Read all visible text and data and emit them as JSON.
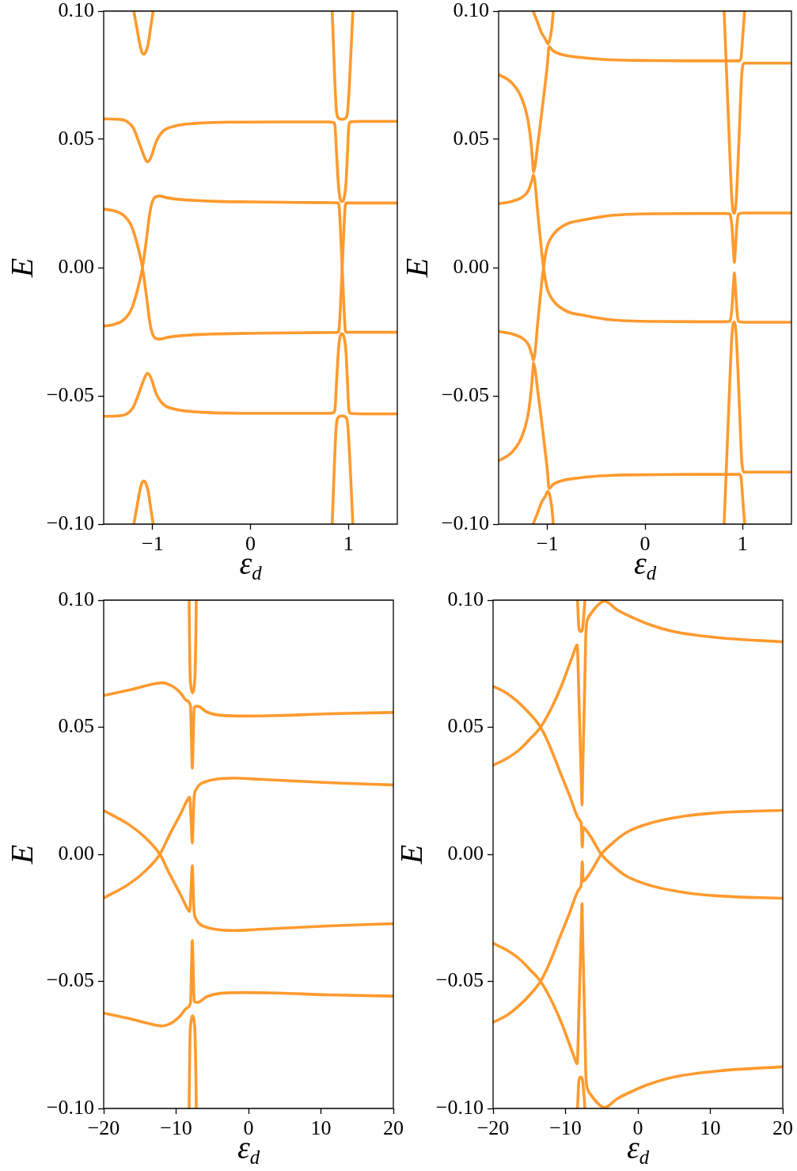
{
  "chart_data": [
    {
      "type": "line",
      "xlabel": "ε$_{d}$",
      "ylabel": "E",
      "xlim": [
        -1.5,
        1.5
      ],
      "xticks": [
        {
          "value": -1,
          "label": "−1"
        },
        0,
        1
      ],
      "ylim": [
        -0.1,
        0.1
      ],
      "yticks": [
        {
          "value": -0.1,
          "label": "−0.10"
        },
        {
          "value": -0.05,
          "label": "−0.05"
        },
        {
          "value": 0,
          "label": "0.00"
        },
        {
          "value": 0.05,
          "label": "0.05"
        },
        {
          "value": 0.1,
          "label": "0.10"
        }
      ],
      "series": [
        {
          "color": "#ff9a2e",
          "x": [
            -1.192,
            -1.162,
            -1.131,
            -1.11,
            -1.09,
            -1.07,
            -1.046,
            -1.02,
            -0.995
          ],
          "values": [
            0.1,
            0.0936,
            0.0871,
            0.084,
            0.0832,
            0.084,
            0.0871,
            0.0936,
            0.1
          ]
        },
        {
          "color": "#ff9a2e",
          "x": [
            0.835,
            0.859,
            0.876,
            0.893,
            0.935,
            0.978,
            0.995,
            1.015,
            1.046
          ],
          "values": [
            0.1,
            0.075,
            0.062,
            0.0585,
            0.0578,
            0.0585,
            0.062,
            0.075,
            0.1
          ]
        },
        {
          "color": "#ff9a2e",
          "x": [
            -1.5,
            -1.353,
            -1.267,
            -1.199,
            -1.131,
            -1.08,
            -1.053,
            -1.019,
            -0.961,
            -0.893,
            -0.773,
            -0.569,
            -0.228,
            0.283,
            0.794,
            0.845,
            0.862,
            0.88,
            0.898,
            0.915,
            0.935,
            0.955,
            0.975,
            0.99,
            1.005,
            1.02,
            1.135,
            1.5
          ],
          "values": [
            0.058,
            0.0578,
            0.0571,
            0.0545,
            0.048,
            0.0428,
            0.0412,
            0.0428,
            0.0493,
            0.0532,
            0.0552,
            0.0562,
            0.0567,
            0.0568,
            0.0568,
            0.0566,
            0.0555,
            0.044,
            0.0325,
            0.027,
            0.0258,
            0.027,
            0.0325,
            0.044,
            0.0555,
            0.0568,
            0.057,
            0.057
          ]
        },
        {
          "color": "#ff9a2e",
          "x": [
            -1.5,
            -1.4,
            -1.3,
            -1.22,
            -1.16,
            -1.104,
            -1.06,
            -1.03,
            -1.0,
            -0.97,
            -0.93,
            -0.85,
            -0.7,
            -0.4,
            0,
            0.5,
            0.85,
            0.895,
            0.905,
            0.937,
            0.968,
            0.978,
            1.1,
            1.5
          ],
          "values": [
            0.0228,
            0.0222,
            0.0205,
            0.0165,
            0.0095,
            0,
            -0.012,
            -0.021,
            -0.026,
            -0.0276,
            -0.0279,
            -0.0272,
            -0.0265,
            -0.0259,
            -0.0256,
            -0.0254,
            -0.0253,
            -0.0252,
            -0.024,
            0,
            0.024,
            0.0252,
            0.0252,
            0.0252
          ]
        },
        {
          "color": "#ff9a2e",
          "x": [
            -1.5,
            -1.4,
            -1.3,
            -1.22,
            -1.16,
            -1.104,
            -1.06,
            -1.03,
            -1.0,
            -0.97,
            -0.93,
            -0.85,
            -0.7,
            -0.4,
            0,
            0.5,
            0.85,
            0.895,
            0.905,
            0.937,
            0.968,
            0.978,
            1.1,
            1.5
          ],
          "values": [
            -0.0228,
            -0.0222,
            -0.0205,
            -0.0165,
            -0.0095,
            0,
            0.012,
            0.021,
            0.026,
            0.0276,
            0.0279,
            0.0272,
            0.0265,
            0.0259,
            0.0256,
            0.0254,
            0.0253,
            0.0252,
            0.024,
            0,
            -0.024,
            -0.0252,
            -0.0252,
            -0.0252
          ]
        },
        {
          "color": "#ff9a2e",
          "x": [
            -1.5,
            -1.353,
            -1.267,
            -1.199,
            -1.131,
            -1.08,
            -1.053,
            -1.019,
            -0.961,
            -0.893,
            -0.773,
            -0.569,
            -0.228,
            0.283,
            0.794,
            0.845,
            0.862,
            0.88,
            0.898,
            0.915,
            0.935,
            0.955,
            0.975,
            0.99,
            1.005,
            1.02,
            1.135,
            1.5
          ],
          "values": [
            -0.058,
            -0.0578,
            -0.0571,
            -0.0545,
            -0.048,
            -0.0428,
            -0.0412,
            -0.0428,
            -0.0493,
            -0.0532,
            -0.0552,
            -0.0562,
            -0.0567,
            -0.0568,
            -0.0568,
            -0.0566,
            -0.0555,
            -0.044,
            -0.0325,
            -0.027,
            -0.0258,
            -0.027,
            -0.0325,
            -0.044,
            -0.0555,
            -0.0568,
            -0.057,
            -0.057
          ]
        },
        {
          "color": "#ff9a2e",
          "x": [
            -1.192,
            -1.162,
            -1.131,
            -1.11,
            -1.09,
            -1.07,
            -1.046,
            -1.02,
            -0.995
          ],
          "values": [
            -0.1,
            -0.0936,
            -0.0871,
            -0.084,
            -0.0832,
            -0.084,
            -0.0871,
            -0.0936,
            -0.1
          ]
        },
        {
          "color": "#ff9a2e",
          "x": [
            0.835,
            0.859,
            0.876,
            0.893,
            0.935,
            0.978,
            0.995,
            1.015,
            1.046
          ],
          "values": [
            -0.1,
            -0.075,
            -0.062,
            -0.0585,
            -0.0578,
            -0.0585,
            -0.062,
            -0.075,
            -0.1
          ]
        }
      ]
    },
    {
      "type": "line",
      "xlabel": "ε$_{d}$",
      "ylabel": "E",
      "xlim": [
        -1.5,
        1.5
      ],
      "xticks": [
        {
          "value": -1,
          "label": "−1"
        },
        0,
        1
      ],
      "ylim": [
        -0.1,
        0.1
      ],
      "yticks": [
        {
          "value": -0.1,
          "label": "−0.10"
        },
        {
          "value": -0.05,
          "label": "−0.05"
        },
        {
          "value": 0,
          "label": "0.00"
        },
        {
          "value": 0.05,
          "label": "0.05"
        },
        {
          "value": 0.1,
          "label": "0.10"
        }
      ],
      "series": [
        {
          "color": "#ff9a2e",
          "x": [
            -1.146,
            -1.1,
            -1.06,
            -1.02,
            -0.995,
            -0.975,
            -0.955,
            -0.94
          ],
          "values": [
            0.1,
            0.0955,
            0.0915,
            0.089,
            0.0872,
            0.089,
            0.0935,
            0.1
          ]
        },
        {
          "color": "#ff9a2e",
          "x": [
            -1.5,
            -1.367,
            -1.265,
            -1.204,
            -1.17,
            -1.152,
            -1.143,
            -1.095,
            -1.044,
            -1.0,
            -0.983,
            -0.942,
            -0.847,
            -0.684,
            -0.357,
            0.1,
            0.469,
            0.965,
            0.982,
            0.995,
            1.02
          ],
          "values": [
            0.0753,
            0.0721,
            0.0662,
            0.0584,
            0.0493,
            0.0415,
            0.0373,
            0.0493,
            0.0649,
            0.0793,
            0.0861,
            0.0845,
            0.083,
            0.082,
            0.081,
            0.0807,
            0.0806,
            0.0806,
            0.0815,
            0.087,
            0.1
          ]
        },
        {
          "color": "#ff9a2e",
          "x": [
            0.81,
            0.831,
            0.87,
            0.889,
            0.902,
            0.912,
            0.922,
            0.935,
            0.955,
            0.975,
            0.99,
            1.0,
            1.015,
            1.5
          ],
          "values": [
            0.1,
            0.08,
            0.043,
            0.027,
            0.022,
            0.0212,
            0.022,
            0.027,
            0.043,
            0.062,
            0.075,
            0.0785,
            0.0797,
            0.0797
          ]
        },
        {
          "color": "#ff9a2e",
          "x": [
            -1.5,
            -1.367,
            -1.265,
            -1.197,
            -1.16,
            -1.143,
            -1.095,
            -1.061,
            -1.04,
            -1.02,
            -1.0,
            -0.975,
            -0.956,
            -0.92,
            -0.88,
            -0.792,
            -0.6,
            -0.357,
            0.129,
            0.81,
            0.87,
            0.89,
            0.905,
            0.915,
            0.925,
            0.94,
            0.955,
            1.014,
            1.5
          ],
          "values": [
            -0.0249,
            -0.0258,
            -0.0273,
            -0.0299,
            -0.0338,
            -0.0362,
            -0.0198,
            -0.0068,
            0,
            0.005,
            0.0085,
            0.0108,
            0.012,
            0.0138,
            0.0152,
            0.0172,
            0.0188,
            0.0203,
            0.021,
            0.0211,
            0.0209,
            0.016,
            0.007,
            0.002,
            0.007,
            0.016,
            0.0209,
            0.0213,
            0.0213
          ]
        },
        {
          "color": "#ff9a2e",
          "x": [
            -1.5,
            -1.367,
            -1.265,
            -1.197,
            -1.16,
            -1.143,
            -1.095,
            -1.061,
            -1.04,
            -1.02,
            -1.0,
            -0.975,
            -0.956,
            -0.92,
            -0.88,
            -0.792,
            -0.6,
            -0.357,
            0.129,
            0.81,
            0.87,
            0.89,
            0.905,
            0.915,
            0.925,
            0.94,
            0.955,
            1.014,
            1.5
          ],
          "values": [
            0.0249,
            0.0258,
            0.0273,
            0.0299,
            0.0338,
            0.0362,
            0.0198,
            0.0068,
            0,
            -0.005,
            -0.0085,
            -0.0108,
            -0.012,
            -0.0138,
            -0.0152,
            -0.0172,
            -0.0188,
            -0.0203,
            -0.021,
            -0.0211,
            -0.0209,
            -0.016,
            -0.007,
            -0.002,
            -0.007,
            -0.016,
            -0.0209,
            -0.0213,
            -0.0213
          ]
        },
        {
          "color": "#ff9a2e",
          "x": [
            -1.5,
            -1.367,
            -1.265,
            -1.204,
            -1.17,
            -1.152,
            -1.143,
            -1.095,
            -1.044,
            -1.0,
            -0.983,
            -0.942,
            -0.847,
            -0.684,
            -0.357,
            0.1,
            0.469,
            0.965,
            0.982,
            0.995,
            1.02
          ],
          "values": [
            -0.0753,
            -0.0721,
            -0.0662,
            -0.0584,
            -0.0493,
            -0.0415,
            -0.0373,
            -0.0493,
            -0.0649,
            -0.0793,
            -0.0861,
            -0.0845,
            -0.083,
            -0.082,
            -0.081,
            -0.0807,
            -0.0806,
            -0.0806,
            -0.0815,
            -0.087,
            -0.1
          ]
        },
        {
          "color": "#ff9a2e",
          "x": [
            0.81,
            0.831,
            0.87,
            0.889,
            0.902,
            0.912,
            0.922,
            0.935,
            0.955,
            0.975,
            0.99,
            1.0,
            1.015,
            1.5
          ],
          "values": [
            -0.1,
            -0.08,
            -0.043,
            -0.027,
            -0.022,
            -0.0212,
            -0.022,
            -0.027,
            -0.043,
            -0.062,
            -0.075,
            -0.0785,
            -0.0797,
            -0.0797
          ]
        },
        {
          "color": "#ff9a2e",
          "x": [
            -1.146,
            -1.1,
            -1.06,
            -1.02,
            -0.995,
            -0.975,
            -0.955,
            -0.94
          ],
          "values": [
            -0.1,
            -0.0955,
            -0.0915,
            -0.089,
            -0.0872,
            -0.089,
            -0.0935,
            -0.1
          ]
        }
      ]
    },
    {
      "type": "line",
      "xlabel": "ε$_{d}$",
      "ylabel": "E",
      "xlim": [
        -20,
        20
      ],
      "xticks": [
        {
          "value": -20,
          "label": "−20"
        },
        {
          "value": -10,
          "label": "−10"
        },
        0,
        10,
        20
      ],
      "ylim": [
        -0.1,
        0.1
      ],
      "yticks": [
        {
          "value": -0.1,
          "label": "−0.10"
        },
        {
          "value": -0.05,
          "label": "−0.05"
        },
        {
          "value": 0,
          "label": "0.00"
        },
        {
          "value": 0.05,
          "label": "0.05"
        },
        {
          "value": 0.1,
          "label": "0.10"
        }
      ],
      "series": [
        {
          "color": "#ff9a2e",
          "x": [
            -8.2,
            -8.15,
            -8.08,
            -7.95,
            -7.73,
            -7.5,
            -7.37,
            -7.28,
            -7.21
          ],
          "values": [
            0.1,
            0.085,
            0.072,
            0.066,
            0.0635,
            0.066,
            0.072,
            0.085,
            0.1
          ]
        },
        {
          "color": "#ff9a2e",
          "x": [
            -20,
            -16.69,
            -13.77,
            -11.95,
            -10.49,
            -9.4,
            -8.49,
            -8.01,
            -7.88,
            -7.76,
            -7.64,
            -7.51,
            -7.03,
            -5.76,
            -3.93,
            -0.3,
            4.08,
            10.96,
            20
          ],
          "values": [
            0.0625,
            0.0645,
            0.0666,
            0.0675,
            0.0661,
            0.0635,
            0.0604,
            0.0583,
            0.045,
            0.0339,
            0.045,
            0.0578,
            0.0583,
            0.056,
            0.0547,
            0.0544,
            0.0546,
            0.0553,
            0.0558
          ]
        },
        {
          "color": "#ff9a2e",
          "x": [
            -20,
            -16.56,
            -14.27,
            -12.24,
            -10.85,
            -9.4,
            -8.31,
            -8.12,
            -7.94,
            -7.76,
            -7.66,
            -7.55,
            -7.4,
            -7.21,
            -6.85,
            -6.0,
            -5.03,
            -2.11,
            1.53,
            10.96,
            20
          ],
          "values": [
            -0.0172,
            -0.0118,
            -0.0066,
            0,
            0.008,
            0.0158,
            0.022,
            0.0225,
            0.014,
            0.0044,
            0.012,
            0.021,
            0.0245,
            0.0256,
            0.0272,
            0.0285,
            0.0293,
            0.03,
            0.0295,
            0.0282,
            0.0273
          ]
        },
        {
          "color": "#ff9a2e",
          "x": [
            -20,
            -16.56,
            -14.27,
            -12.24,
            -10.85,
            -9.4,
            -8.31,
            -8.12,
            -7.94,
            -7.76,
            -7.66,
            -7.55,
            -7.4,
            -7.21,
            -6.85,
            -6.0,
            -5.03,
            -2.11,
            1.53,
            10.96,
            20
          ],
          "values": [
            0.0172,
            0.0118,
            0.0066,
            0,
            -0.008,
            -0.0158,
            -0.022,
            -0.0225,
            -0.014,
            -0.0044,
            -0.012,
            -0.021,
            -0.0245,
            -0.0256,
            -0.0272,
            -0.0285,
            -0.0293,
            -0.03,
            -0.0295,
            -0.0282,
            -0.0273
          ]
        },
        {
          "color": "#ff9a2e",
          "x": [
            -20,
            -16.69,
            -13.77,
            -11.95,
            -10.49,
            -9.4,
            -8.49,
            -8.01,
            -7.88,
            -7.76,
            -7.64,
            -7.51,
            -7.03,
            -5.76,
            -3.93,
            -0.3,
            4.08,
            10.96,
            20
          ],
          "values": [
            -0.0625,
            -0.0645,
            -0.0666,
            -0.0675,
            -0.0661,
            -0.0635,
            -0.0604,
            -0.0583,
            -0.045,
            -0.0339,
            -0.045,
            -0.0578,
            -0.0583,
            -0.056,
            -0.0547,
            -0.0544,
            -0.0546,
            -0.0553,
            -0.0558
          ]
        },
        {
          "color": "#ff9a2e",
          "x": [
            -8.2,
            -8.15,
            -8.08,
            -7.95,
            -7.73,
            -7.5,
            -7.37,
            -7.28,
            -7.21
          ],
          "values": [
            -0.1,
            -0.085,
            -0.072,
            -0.066,
            -0.0635,
            -0.066,
            -0.072,
            -0.085,
            -0.1
          ]
        }
      ]
    },
    {
      "type": "line",
      "xlabel": "ε$_{d}$",
      "ylabel": "E",
      "xlim": [
        -20,
        20
      ],
      "xticks": [
        {
          "value": -20,
          "label": "−20"
        },
        {
          "value": -10,
          "label": "−10"
        },
        0,
        10,
        20
      ],
      "ylim": [
        -0.1,
        0.1
      ],
      "yticks": [
        {
          "value": -0.1,
          "label": "−0.10"
        },
        {
          "value": -0.05,
          "label": "−0.05"
        },
        {
          "value": 0,
          "label": "0.00"
        },
        {
          "value": 0.05,
          "label": "0.05"
        },
        {
          "value": 0.1,
          "label": "0.10"
        }
      ],
      "series": [
        {
          "color": "#ff9a2e",
          "x": [
            -8.34,
            -8.25,
            -8.16,
            -8.03,
            -7.9,
            -7.76,
            -7.61,
            -7.47,
            -7.32
          ],
          "values": [
            0.1,
            0.094,
            0.0894,
            0.0879,
            0.0876,
            0.0879,
            0.0894,
            0.094,
            0.1
          ]
        },
        {
          "color": "#ff9a2e",
          "x": [
            -20,
            -18.17,
            -16.35,
            -14.9,
            -13.44,
            -11.98,
            -10.52,
            -9.43,
            -8.9,
            -8.55,
            -8.41,
            -8.33,
            -8.13,
            -7.93,
            -7.78,
            -7.72,
            -7.64,
            -7.48,
            -7.32,
            -7.21,
            -7.1,
            -6.9,
            -6.51,
            -5.42,
            -4.62,
            -2.87,
            -0.69,
            1.49,
            5,
            11.19,
            20
          ],
          "values": [
            0.035,
            0.0376,
            0.0412,
            0.0454,
            0.05,
            0.0573,
            0.0666,
            0.0749,
            0.079,
            0.0818,
            0.0824,
            0.08,
            0.06,
            0.04,
            0.025,
            0.0194,
            0.03,
            0.05,
            0.07,
            0.085,
            0.0905,
            0.0928,
            0.0946,
            0.0983,
            0.0996,
            0.0962,
            0.0931,
            0.0905,
            0.0876,
            0.0852,
            0.0836
          ]
        },
        {
          "color": "#ff9a2e",
          "x": [
            -20,
            -18.17,
            -16.35,
            -14.9,
            -13.44,
            -12.35,
            -10.89,
            -9.43,
            -8.34,
            -7.98,
            -7.82,
            -7.68,
            -7.55,
            -7.4,
            -6.51,
            -5.06,
            -3.94,
            -1.65,
            2.02,
            6.61,
            11.19,
            20
          ],
          "values": [
            0.0661,
            0.0635,
            0.0594,
            0.0552,
            0.05,
            0.0438,
            0.0334,
            0.023,
            0.0147,
            0.0132,
            0.0118,
            0.0028,
            0.0105,
            0.0103,
            0.0069,
            0,
            -0.0033,
            -0.0085,
            -0.0125,
            -0.0151,
            -0.0164,
            -0.0173
          ]
        },
        {
          "color": "#ff9a2e",
          "x": [
            -20,
            -18.17,
            -16.35,
            -14.9,
            -13.44,
            -12.35,
            -10.89,
            -9.43,
            -8.34,
            -7.98,
            -7.82,
            -7.68,
            -7.55,
            -7.4,
            -6.51,
            -5.06,
            -3.94,
            -1.65,
            2.02,
            6.61,
            11.19,
            20
          ],
          "values": [
            -0.0661,
            -0.0635,
            -0.0594,
            -0.0552,
            -0.05,
            -0.0438,
            -0.0334,
            -0.023,
            -0.0147,
            -0.0132,
            -0.0118,
            -0.0028,
            -0.0105,
            -0.0103,
            -0.0069,
            0,
            0.0033,
            0.0085,
            0.0125,
            0.0151,
            0.0164,
            0.0173
          ]
        },
        {
          "color": "#ff9a2e",
          "x": [
            -20,
            -18.17,
            -16.35,
            -14.9,
            -13.44,
            -11.98,
            -10.52,
            -9.43,
            -8.9,
            -8.55,
            -8.41,
            -8.33,
            -8.13,
            -7.93,
            -7.78,
            -7.72,
            -7.64,
            -7.48,
            -7.32,
            -7.21,
            -7.1,
            -6.9,
            -6.51,
            -5.42,
            -4.62,
            -2.87,
            -0.69,
            1.49,
            5,
            11.19,
            20
          ],
          "values": [
            -0.035,
            -0.0376,
            -0.0412,
            -0.0454,
            -0.05,
            -0.0573,
            -0.0666,
            -0.0749,
            -0.079,
            -0.0818,
            -0.0824,
            -0.08,
            -0.06,
            -0.04,
            -0.025,
            -0.0194,
            -0.03,
            -0.05,
            -0.07,
            -0.085,
            -0.0905,
            -0.0928,
            -0.0946,
            -0.0983,
            -0.0996,
            -0.0962,
            -0.0931,
            -0.0905,
            -0.0876,
            -0.0852,
            -0.0836
          ]
        },
        {
          "color": "#ff9a2e",
          "x": [
            -8.34,
            -8.25,
            -8.16,
            -8.03,
            -7.9,
            -7.76,
            -7.61,
            -7.47,
            -7.32
          ],
          "values": [
            -0.1,
            -0.094,
            -0.0894,
            -0.0879,
            -0.0876,
            -0.0879,
            -0.0894,
            -0.094,
            -0.1
          ]
        }
      ]
    }
  ]
}
